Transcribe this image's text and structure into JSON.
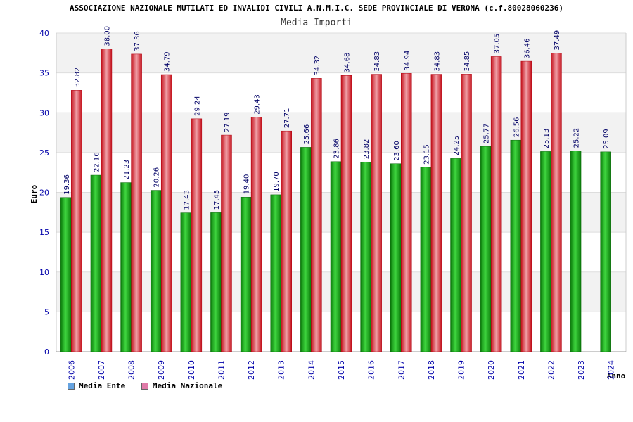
{
  "header": {
    "title": "ASSOCIAZIONE NAZIONALE MUTILATI ED INVALIDI CIVILI A.N.M.I.C. SEDE PROVINCIALE DI VERONA (c.f.80028060236)",
    "subtitle": "Media Importi"
  },
  "legend": {
    "items": [
      {
        "label": "Media Ente",
        "color": "#66a3e0"
      },
      {
        "label": "Media Nazionale",
        "color": "#e07aa8"
      }
    ]
  },
  "colors": {
    "ente_bar": "#1aa81a",
    "nazionale_bar": "#e8202a",
    "axis_text": "#0000aa",
    "value_text": "#000066",
    "band": "#f2f2f2"
  },
  "chart_data": {
    "type": "bar",
    "title": "Media Importi",
    "xlabel": "Anno",
    "ylabel": "Euro",
    "ylim": [
      0,
      40
    ],
    "yticks": [
      0,
      5,
      10,
      15,
      20,
      25,
      30,
      35,
      40
    ],
    "categories": [
      "2006",
      "2007",
      "2008",
      "2009",
      "2010",
      "2011",
      "2012",
      "2013",
      "2014",
      "2015",
      "2016",
      "2017",
      "2018",
      "2019",
      "2020",
      "2021",
      "2022",
      "2023",
      "2024"
    ],
    "series": [
      {
        "name": "Media Ente",
        "values": [
          19.36,
          22.16,
          21.23,
          20.26,
          17.43,
          17.45,
          19.4,
          19.7,
          25.66,
          23.86,
          23.82,
          23.6,
          23.15,
          24.25,
          25.77,
          26.56,
          25.13,
          25.22,
          25.09
        ],
        "labels": [
          "19.36",
          "22.16",
          "21.23",
          "20.26",
          "17.43",
          "17.45",
          "19.40",
          "19.70",
          "25.66",
          "23.86",
          "23.82",
          "23.60",
          "23.15",
          "24.25",
          "25.77",
          "26.56",
          "25.13",
          "25.22",
          "25.09"
        ]
      },
      {
        "name": "Media Nazionale",
        "values": [
          32.82,
          38.0,
          37.36,
          34.79,
          29.24,
          27.19,
          29.43,
          27.71,
          34.32,
          34.68,
          34.83,
          34.94,
          34.83,
          34.85,
          37.05,
          36.46,
          37.49,
          null,
          null
        ],
        "labels": [
          "32.82",
          "38.00",
          "37.36",
          "34.79",
          "29.24",
          "27.19",
          "29.43",
          "27.71",
          "34.32",
          "34.68",
          "34.83",
          "34.94",
          "34.83",
          "34.85",
          "37.05",
          "36.46",
          "37.49",
          null,
          null
        ]
      }
    ]
  }
}
